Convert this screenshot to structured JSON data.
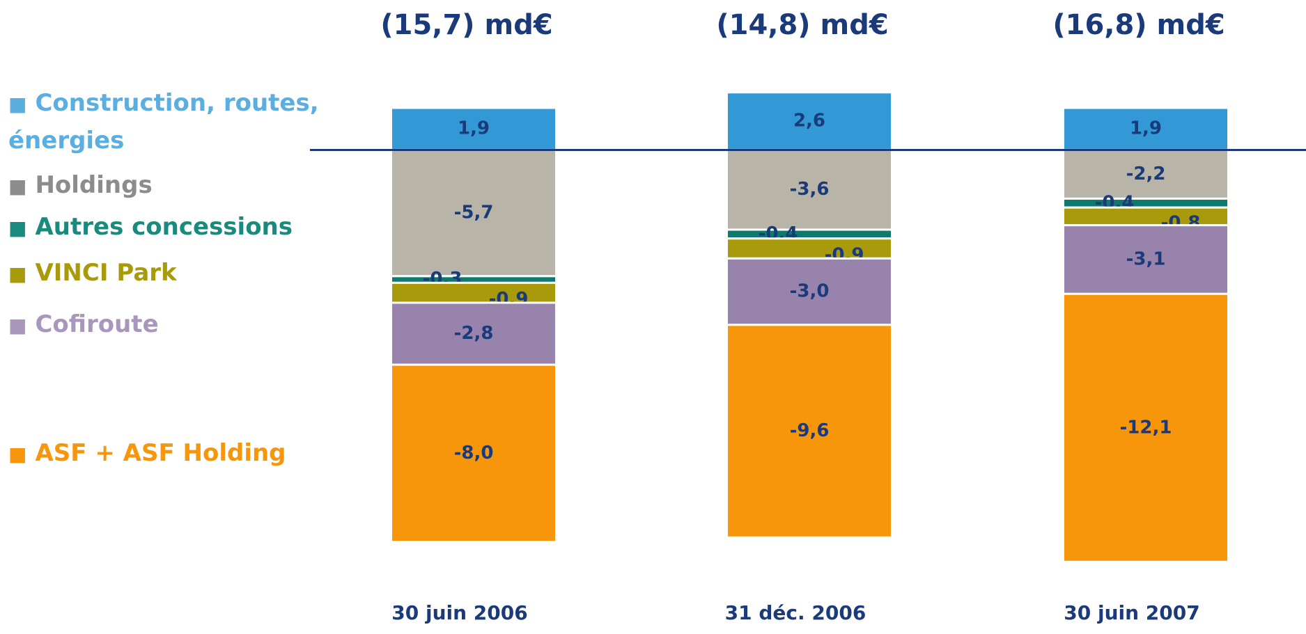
{
  "chart_data": {
    "type": "stacked_bar",
    "categories": [
      "30 juin 2006",
      "31 déc. 2006",
      "30 juin 2007"
    ],
    "totals": [
      "(15,7) md€",
      "(14,8) md€",
      "(16,8) md€"
    ],
    "ylim": [
      -19,
      3
    ],
    "series": [
      {
        "name": "Construction, routes, énergies",
        "color": "#3399d6",
        "legend_color": "#5aaee0",
        "values": [
          1.9,
          2.6,
          1.9
        ],
        "value_labels": [
          "1,9",
          "2,6",
          "1,9"
        ]
      },
      {
        "name": "Holdings",
        "color": "#b8b5a8",
        "legend_color": "#8c8c8c",
        "values": [
          -5.7,
          -3.6,
          -2.2
        ],
        "value_labels": [
          "-5,7",
          "-3,6",
          "-2,2"
        ]
      },
      {
        "name": "Autres concessions",
        "color": "#0e7a6e",
        "legend_color": "#1a8a7e",
        "values": [
          -0.3,
          -0.4,
          -0.4
        ],
        "value_labels": [
          "-0,3",
          "-0,4",
          "-0,4"
        ]
      },
      {
        "name": "VINCI Park",
        "color": "#a89a0a",
        "legend_color": "#a89a0a",
        "values": [
          -0.9,
          -0.9,
          -0.8
        ],
        "value_labels": [
          "-0,9",
          "-0,9",
          "-0,8"
        ]
      },
      {
        "name": "Cofiroute",
        "color": "#9783ab",
        "legend_color": "#a996bd",
        "values": [
          -2.8,
          -3.0,
          -3.1
        ],
        "value_labels": [
          "-2,8",
          "-3,0",
          "-3,1"
        ]
      },
      {
        "name": "ASF + ASF Holding",
        "color": "#f7960a",
        "legend_color": "#f7960a",
        "values": [
          -8.0,
          -9.6,
          -12.1
        ],
        "value_labels": [
          "-8,0",
          "-9,6",
          "-12,1"
        ]
      }
    ]
  }
}
